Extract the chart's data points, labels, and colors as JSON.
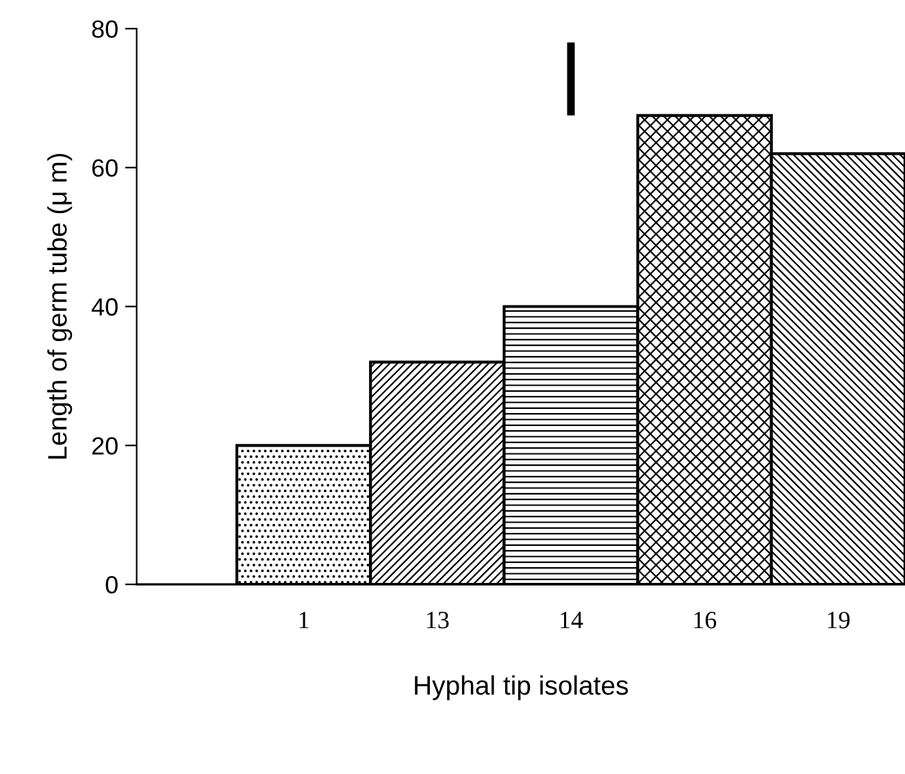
{
  "chart_data": {
    "type": "bar",
    "xlabel": "Hyphal tip isolates",
    "ylabel": "Length of germ tube (μ m)",
    "categories": [
      "1",
      "13",
      "14",
      "16",
      "19"
    ],
    "series": [
      {
        "color": "#000000",
        "values": [
          20,
          32,
          40,
          67.5,
          62
        ]
      },
      {
        "type": "line",
        "color": "#000000",
        "x": [
          "14",
          "14"
        ],
        "values": [
          78,
          67.5
        ]
      }
    ],
    "ylim": [
      0,
      80
    ],
    "yticks": [
      0,
      20,
      40,
      60,
      80
    ],
    "grid": false,
    "legend": false
  }
}
